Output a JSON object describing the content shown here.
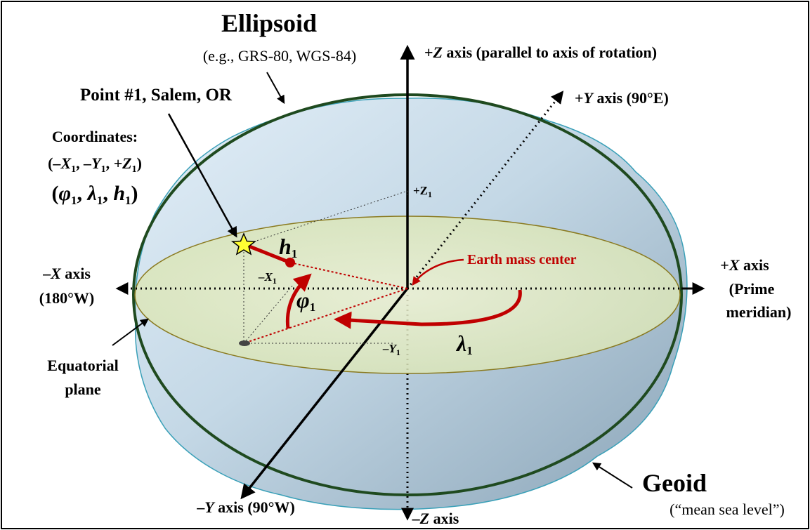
{
  "labels": {
    "ellipsoid_title": "Ellipsoid",
    "ellipsoid_examples": "(e.g., GRS-80, WGS-84)",
    "point_title": "Point #1, Salem, OR",
    "coordinates_label": "Coordinates:",
    "coords_xyz": {
      "neg_x": "–X",
      "sub1": "1",
      "sep": ", ",
      "neg_y": "–Y",
      "pos_z": "+Z",
      "open": "(",
      "close": ")"
    },
    "coords_geo": {
      "phi": "φ",
      "lambda": "λ",
      "h": "h",
      "sub": "1",
      "open": "(",
      "close": ")",
      "sep": ", "
    },
    "pos_z_axis_sign": "+",
    "pos_z_axis_var": "Z",
    "pos_z_axis_text": " axis (parallel to axis of rotation)",
    "pos_y_axis_sign": "+",
    "pos_y_axis_var": "Y",
    "pos_y_axis_text": " axis (90°E)",
    "neg_x_axis_sign": "–",
    "neg_x_axis_var": "X",
    "neg_x_axis_text": " axis",
    "neg_x_axis_deg": "(180°W)",
    "pos_x_axis_sign": "+",
    "pos_x_axis_var": "X",
    "pos_x_axis_text": " axis",
    "pos_x_axis_line2": "(Prime",
    "pos_x_axis_line3": "meridian)",
    "earth_mass_center": "Earth mass center",
    "equatorial_plane_1": "Equatorial",
    "equatorial_plane_2": "plane",
    "neg_y_axis_sign": "–",
    "neg_y_axis_var": "Y",
    "neg_y_axis_text": " axis (90°W)",
    "neg_z_axis_sign": "–",
    "neg_z_axis_var": "Z",
    "neg_z_axis_text": " axis",
    "geoid_title": "Geoid",
    "geoid_subtitle": "(“mean sea level”)",
    "plus_z1": "+Z",
    "neg_x1": "–X",
    "neg_y1": "–Y",
    "sub_one": "1",
    "h_label": "h",
    "phi_label": "φ",
    "lambda_label": "λ"
  },
  "colors": {
    "ellipsoid_outline": "#1f4a1f",
    "ellipsoid_fill_top": "#dcebf5",
    "ellipsoid_fill_bottom": "#8ea9bc",
    "geoid_outline": "#3aa0b8",
    "equatorial_fill": "#e4ecc4",
    "equatorial_outline": "#8a7a20",
    "accent_red": "#c00000",
    "star_fill": "#ffff33",
    "axis": "#000000"
  }
}
